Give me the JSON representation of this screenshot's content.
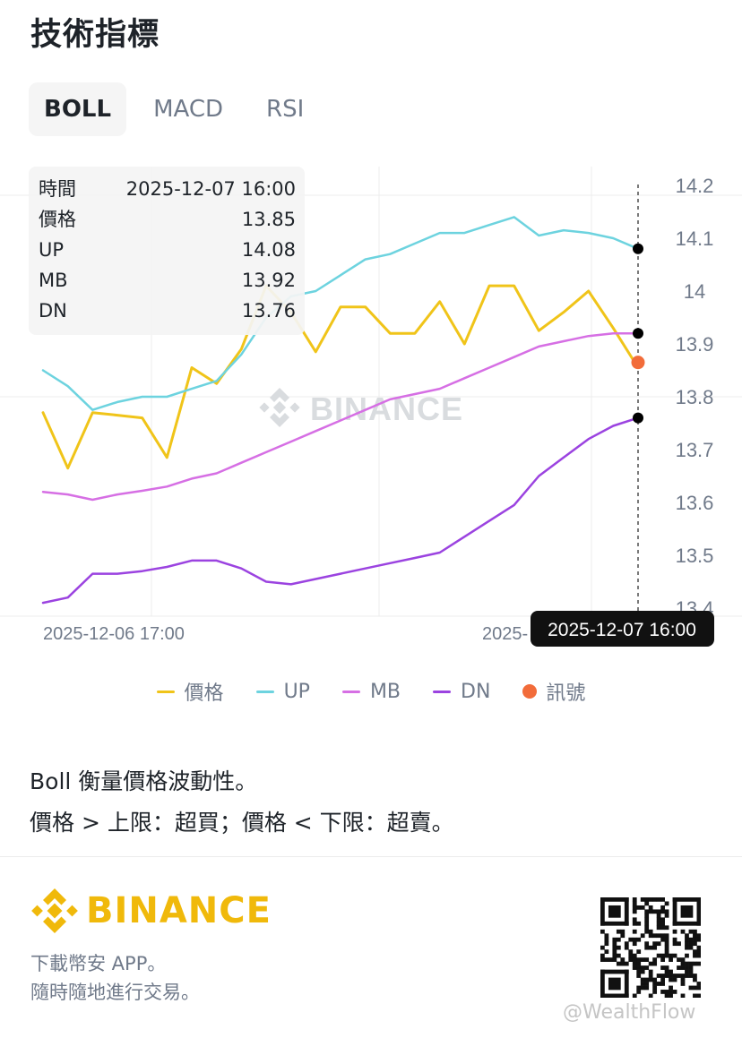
{
  "header": {
    "title": "技術指標"
  },
  "tabs": [
    {
      "label": "BOLL",
      "active": true
    },
    {
      "label": "MACD",
      "active": false
    },
    {
      "label": "RSI",
      "active": false
    }
  ],
  "tooltip": {
    "rows": [
      {
        "key": "時間",
        "value": "2025-12-07 16:00"
      },
      {
        "key": "價格",
        "value": "13.85"
      },
      {
        "key": "UP",
        "value": "14.08"
      },
      {
        "key": "MB",
        "value": "13.92"
      },
      {
        "key": "DN",
        "value": "13.76"
      }
    ]
  },
  "chart_watermark": "BINANCE",
  "chart_data": {
    "type": "line",
    "x_ticks": [
      "2025-12-06 17:00",
      "2025-12-07 16:00"
    ],
    "x_tick_partial": "2025-",
    "crosshair_label": "2025-12-07 16:00",
    "y_ticks": [
      14.2,
      14.1,
      14,
      13.9,
      13.8,
      13.7,
      13.6,
      13.5,
      13.4
    ],
    "ylim": [
      13.38,
      14.22
    ],
    "grid": true,
    "legend_position": "bottom",
    "series": [
      {
        "name": "價格",
        "color": "#f0c419",
        "values": [
          13.77,
          13.665,
          13.77,
          13.765,
          13.76,
          13.685,
          13.855,
          13.825,
          13.89,
          14.01,
          13.96,
          13.885,
          13.97,
          13.97,
          13.92,
          13.92,
          13.98,
          13.9,
          14.01,
          14.01,
          13.925,
          13.96,
          14.0,
          13.93,
          13.855
        ]
      },
      {
        "name": "UP",
        "color": "#6dd3df",
        "values": [
          13.85,
          13.82,
          13.775,
          13.79,
          13.8,
          13.8,
          13.815,
          13.83,
          13.88,
          13.95,
          13.99,
          14.0,
          14.03,
          14.06,
          14.07,
          14.09,
          14.11,
          14.11,
          14.125,
          14.14,
          14.105,
          14.115,
          14.11,
          14.1,
          14.08
        ]
      },
      {
        "name": "MB",
        "color": "#d66fe4",
        "values": [
          13.62,
          13.615,
          13.605,
          13.615,
          13.622,
          13.63,
          13.645,
          13.655,
          13.675,
          13.695,
          13.715,
          13.735,
          13.755,
          13.775,
          13.795,
          13.805,
          13.815,
          13.835,
          13.855,
          13.875,
          13.895,
          13.905,
          13.915,
          13.92,
          13.92
        ]
      },
      {
        "name": "DN",
        "color": "#9b43e0",
        "values": [
          13.41,
          13.42,
          13.465,
          13.465,
          13.47,
          13.478,
          13.49,
          13.49,
          13.475,
          13.45,
          13.445,
          13.455,
          13.465,
          13.475,
          13.485,
          13.495,
          13.505,
          13.535,
          13.565,
          13.595,
          13.65,
          13.685,
          13.72,
          13.745,
          13.76
        ]
      }
    ],
    "signal": {
      "name": "訊號",
      "color": "#f26c3a",
      "index": 24,
      "value": 13.865
    }
  },
  "legend": [
    {
      "label": "價格",
      "color": "#f0c419",
      "shape": "line"
    },
    {
      "label": "UP",
      "color": "#6dd3df",
      "shape": "line"
    },
    {
      "label": "MB",
      "color": "#d66fe4",
      "shape": "line"
    },
    {
      "label": "DN",
      "color": "#9b43e0",
      "shape": "line"
    },
    {
      "label": "訊號",
      "color": "#f26c3a",
      "shape": "dot"
    }
  ],
  "description": {
    "line1": "Boll 衡量價格波動性。",
    "line2": "價格 > 上限：超買；價格 < 下限：超賣。"
  },
  "footer": {
    "brand": "BINANCE",
    "line1": "下載幣安 APP。",
    "line2": "隨時隨地進行交易。",
    "qr_icon": "qr-code-icon",
    "watermark": "@WealthFlow"
  },
  "colors": {
    "brand": "#f0b90b",
    "text": "#1e2329",
    "muted": "#707a8a"
  }
}
